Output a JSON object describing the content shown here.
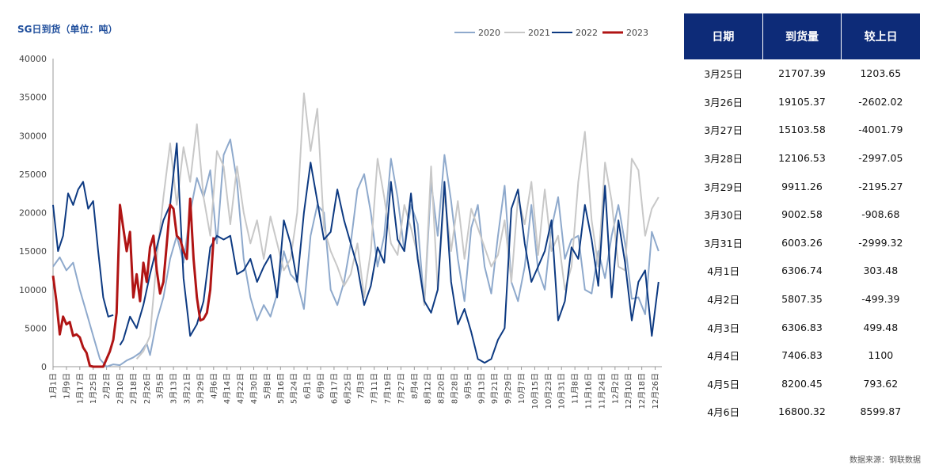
{
  "chart_data": {
    "type": "line",
    "title": "SG日到货（单位：吨）",
    "xlabel": "",
    "ylabel": "",
    "ylim": [
      0,
      40000
    ],
    "yticks": [
      0,
      5000,
      10000,
      15000,
      20000,
      25000,
      30000,
      35000,
      40000
    ],
    "x_tick_labels": [
      "1月1日",
      "1月9日",
      "1月17日",
      "1月25日",
      "2月2日",
      "2月10日",
      "2月18日",
      "2月26日",
      "3月5日",
      "3月13日",
      "3月21日",
      "3月29日",
      "4月6日",
      "4月14日",
      "4月22日",
      "4月30日",
      "5月8日",
      "5月16日",
      "5月24日",
      "6月1日",
      "6月9日",
      "6月17日",
      "6月25日",
      "7月3日",
      "7月11日",
      "7月19日",
      "7月27日",
      "8月4日",
      "8月12日",
      "8月20日",
      "8月28日",
      "9月5日",
      "9月13日",
      "9月21日",
      "9月29日",
      "10月7日",
      "10月15日",
      "10月23日",
      "10月31日",
      "11月8日",
      "11月16日",
      "11月24日",
      "12月2日",
      "12月10日",
      "12月18日",
      "12月26日"
    ],
    "legend_position": "top-right",
    "series": [
      {
        "name": "2020",
        "color": "#8ea9cc",
        "x": [
          0,
          4,
          8,
          12,
          16,
          20,
          24,
          28,
          32,
          36,
          40,
          44,
          48,
          52,
          56,
          58,
          62,
          66,
          70,
          74,
          78,
          82,
          86,
          90,
          94,
          98,
          102,
          106,
          110,
          114,
          118,
          122,
          126,
          130,
          134,
          138,
          142,
          146,
          150,
          154,
          158,
          162,
          166,
          170,
          174,
          178,
          182,
          186,
          190,
          194,
          198,
          202,
          206,
          210,
          214,
          218,
          222,
          226,
          230,
          234,
          238,
          242,
          246,
          250,
          254,
          258,
          262,
          266,
          270,
          274,
          278,
          282,
          286,
          290,
          294,
          298,
          302,
          306,
          310,
          314,
          318,
          322,
          326,
          330,
          334,
          338,
          342,
          346,
          350,
          354,
          358,
          362
        ],
        "values": [
          13000,
          14200,
          12500,
          13500,
          10000,
          7000,
          4000,
          1000,
          0,
          300,
          200,
          800,
          1200,
          1800,
          3000,
          1500,
          6000,
          9000,
          14000,
          17000,
          13500,
          20000,
          24500,
          22000,
          25500,
          16000,
          27500,
          29500,
          24000,
          14000,
          9000,
          6000,
          8000,
          6500,
          9500,
          15000,
          12000,
          11000,
          7500,
          17000,
          21000,
          20000,
          10000,
          8000,
          11000,
          16000,
          23000,
          25000,
          20000,
          13000,
          17000,
          27000,
          22000,
          15000,
          21000,
          18500,
          8000,
          24000,
          17000,
          27500,
          21500,
          14000,
          8500,
          18000,
          21000,
          13000,
          9500,
          17000,
          23500,
          11000,
          8500,
          13000,
          21000,
          12500,
          10000,
          18000,
          22000,
          14000,
          16500,
          17000,
          10000,
          9500,
          15000,
          11500,
          17000,
          21000,
          16000,
          8800,
          9000,
          6800,
          17500,
          15000
        ]
      },
      {
        "name": "2021",
        "color": "#c8c8c8",
        "x": [
          50,
          54,
          58,
          62,
          66,
          70,
          74,
          78,
          82,
          86,
          90,
          94,
          98,
          102,
          106,
          110,
          114,
          118,
          122,
          126,
          130,
          134,
          138,
          142,
          146,
          150,
          154,
          158,
          162,
          166,
          170,
          174,
          178,
          182,
          186,
          190,
          194,
          198,
          202,
          206,
          210,
          214,
          218,
          222,
          226,
          230,
          234,
          238,
          242,
          246,
          250,
          254,
          258,
          262,
          266,
          270,
          274,
          278,
          282,
          286,
          290,
          294,
          298,
          302,
          306,
          310,
          314,
          318,
          322,
          326,
          330,
          334,
          338,
          342,
          346,
          350,
          354,
          358,
          362
        ],
        "values": [
          1000,
          2000,
          4000,
          14000,
          22000,
          29000,
          21000,
          28500,
          24000,
          31500,
          22000,
          17000,
          28000,
          26000,
          18500,
          26000,
          20000,
          16000,
          19000,
          14000,
          19500,
          16000,
          12500,
          14000,
          20000,
          35500,
          28000,
          33500,
          18000,
          15000,
          13000,
          10500,
          12000,
          16000,
          9000,
          15000,
          27000,
          22000,
          16000,
          14500,
          21000,
          18000,
          14500,
          8000,
          26000,
          10000,
          22500,
          15000,
          21500,
          14000,
          20500,
          18000,
          15500,
          13000,
          14500,
          19000,
          11000,
          22000,
          18500,
          24000,
          14500,
          23000,
          15000,
          17000,
          10000,
          13000,
          24000,
          30500,
          19000,
          13000,
          26500,
          21500,
          13000,
          12500,
          27000,
          25500,
          17000,
          20500,
          22000
        ]
      },
      {
        "name": "2022",
        "color": "#0d3a82",
        "x": [
          0,
          3,
          6,
          9,
          12,
          15,
          18,
          21,
          24,
          27,
          30,
          33,
          36,
          38,
          40,
          42,
          46,
          50,
          54,
          58,
          62,
          66,
          70,
          74,
          78,
          82,
          86,
          90,
          94,
          98,
          102,
          106,
          110,
          114,
          118,
          122,
          126,
          130,
          134,
          138,
          142,
          146,
          150,
          154,
          158,
          162,
          166,
          170,
          174,
          178,
          182,
          186,
          190,
          194,
          198,
          202,
          206,
          210,
          214,
          218,
          222,
          226,
          230,
          234,
          238,
          242,
          246,
          250,
          254,
          258,
          262,
          266,
          270,
          274,
          278,
          282,
          286,
          290,
          294,
          298,
          302,
          306,
          310,
          314,
          318,
          322,
          326,
          330,
          334,
          338,
          342,
          346,
          350,
          354,
          358,
          362
        ],
        "values": [
          21000,
          15000,
          17000,
          22500,
          21000,
          23000,
          24000,
          20500,
          21500,
          15000,
          9000,
          6500,
          6700,
          null,
          2800,
          3500,
          6500,
          5000,
          8000,
          12000,
          15500,
          19000,
          21000,
          29000,
          11500,
          4000,
          5500,
          8500,
          15500,
          17000,
          16500,
          17000,
          12000,
          12500,
          14000,
          11000,
          13000,
          14500,
          9000,
          19000,
          16000,
          11000,
          20000,
          26500,
          21500,
          16500,
          17500,
          23000,
          19000,
          16000,
          13000,
          8000,
          10500,
          15500,
          13500,
          24000,
          16500,
          15000,
          22500,
          14000,
          8500,
          7000,
          10000,
          24000,
          11000,
          5500,
          7500,
          4500,
          1000,
          500,
          1000,
          3500,
          5000,
          20500,
          23000,
          16000,
          11000,
          13000,
          15000,
          19000,
          6000,
          8500,
          15500,
          14000,
          21000,
          16500,
          10500,
          23500,
          9000,
          19000,
          13500,
          6000,
          11000,
          12500,
          4000,
          11000
        ]
      },
      {
        "name": "2023",
        "color": "#b01414",
        "x": [
          0,
          2,
          4,
          6,
          8,
          10,
          12,
          14,
          16,
          18,
          20,
          22,
          24,
          26,
          28,
          30,
          32,
          34,
          36,
          38,
          40,
          42,
          44,
          46,
          48,
          50,
          52,
          54,
          56,
          58,
          60,
          62,
          64,
          66,
          68,
          70,
          72,
          74,
          76,
          78,
          80,
          82,
          84,
          86,
          88,
          90,
          92,
          94,
          96
        ],
        "values": [
          11800,
          8500,
          4200,
          6500,
          5500,
          5800,
          4000,
          4200,
          3800,
          2500,
          1800,
          100,
          0,
          0,
          0,
          0,
          1000,
          2000,
          3500,
          7000,
          21000,
          18000,
          15000,
          17500,
          9000,
          12000,
          8500,
          13500,
          11000,
          15500,
          17000,
          12500,
          9500,
          11000,
          16000,
          21000,
          20500,
          17000,
          16500,
          15000,
          14000,
          21800,
          14000,
          9000,
          6000,
          6200,
          7000,
          10000,
          16800
        ]
      }
    ]
  },
  "table": {
    "headers": [
      "日期",
      "到货量",
      "较上日"
    ],
    "rows": [
      [
        "3月25日",
        "21707.39",
        "1203.65"
      ],
      [
        "3月26日",
        "19105.37",
        "-2602.02"
      ],
      [
        "3月27日",
        "15103.58",
        "-4001.79"
      ],
      [
        "3月28日",
        "12106.53",
        "-2997.05"
      ],
      [
        "3月29日",
        "9911.26",
        "-2195.27"
      ],
      [
        "3月30日",
        "9002.58",
        "-908.68"
      ],
      [
        "3月31日",
        "6003.26",
        "-2999.32"
      ],
      [
        "4月1日",
        "6306.74",
        "303.48"
      ],
      [
        "4月2日",
        "5807.35",
        "-499.39"
      ],
      [
        "4月3日",
        "6306.83",
        "499.48"
      ],
      [
        "4月4日",
        "7406.83",
        "1100"
      ],
      [
        "4月5日",
        "8200.45",
        "793.62"
      ],
      [
        "4月6日",
        "16800.32",
        "8599.87"
      ]
    ]
  },
  "source": "数据来源：钢联数据"
}
